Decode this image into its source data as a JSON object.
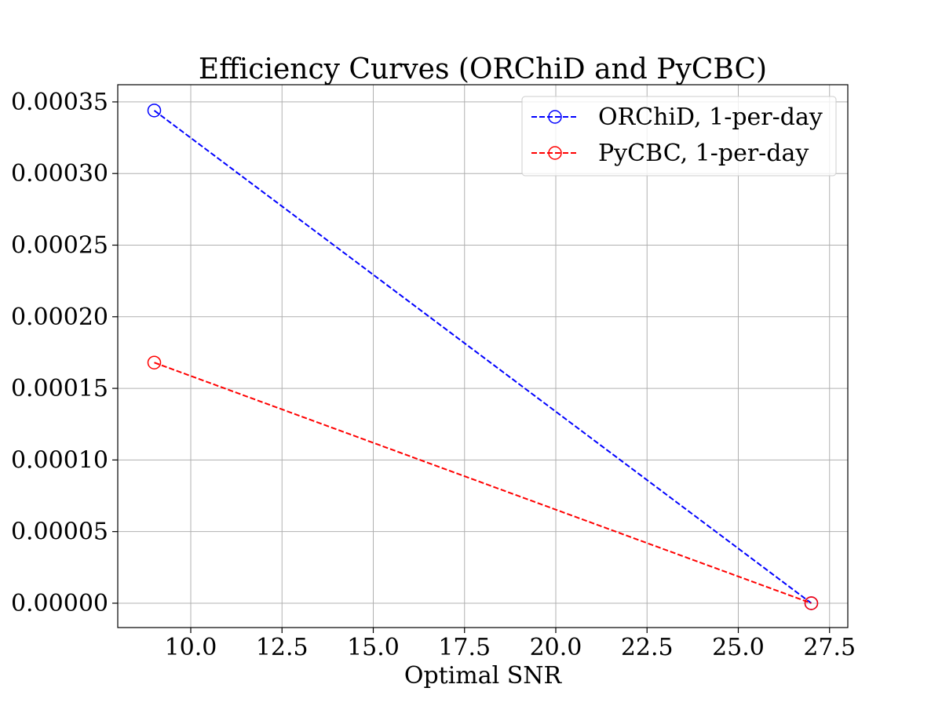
{
  "chart_data": {
    "type": "line",
    "title": "Efficiency Curves (ORChiD and PyCBC)",
    "xlabel": "Optimal SNR",
    "ylabel": "",
    "xlim": [
      8.0,
      28.0
    ],
    "ylim": [
      -1.7e-05,
      0.000362
    ],
    "xticks": [
      10.0,
      12.5,
      15.0,
      17.5,
      20.0,
      22.5,
      25.0,
      27.5
    ],
    "xtick_labels": [
      "10.0",
      "12.5",
      "15.0",
      "17.5",
      "20.0",
      "22.5",
      "25.0",
      "27.5"
    ],
    "yticks": [
      0.0,
      5e-05,
      0.0001,
      0.00015,
      0.0002,
      0.00025,
      0.0003,
      0.00035
    ],
    "ytick_labels": [
      "0.00000",
      "0.00005",
      "0.00010",
      "0.00015",
      "0.00020",
      "0.00025",
      "0.00030",
      "0.00035"
    ],
    "grid": true,
    "legend_position": "upper right",
    "series": [
      {
        "name": "ORChiD, 1-per-day",
        "color": "#0000ff",
        "line_style": "dashed",
        "marker": "open-circle",
        "x": [
          9.0,
          27.0
        ],
        "y": [
          0.000344,
          0.0
        ]
      },
      {
        "name": "PyCBC, 1-per-day",
        "color": "#ff0000",
        "line_style": "dashed",
        "marker": "open-circle",
        "x": [
          9.0,
          27.0
        ],
        "y": [
          0.000168,
          0.0
        ]
      }
    ]
  }
}
